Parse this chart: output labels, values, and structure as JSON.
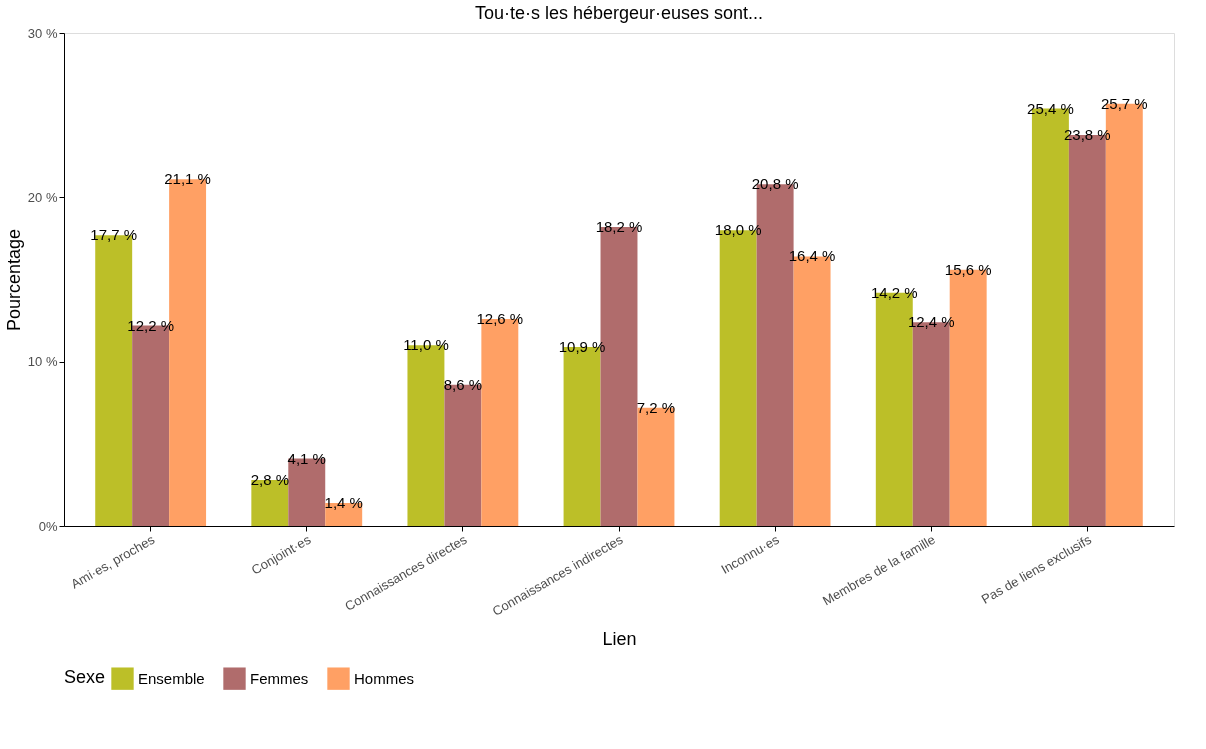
{
  "chart_data": {
    "type": "bar",
    "title": "Tou·te·s les hébergeur·euses sont...",
    "xlabel": "Lien",
    "ylabel": "Pourcentage",
    "legend_title": "Sexe",
    "legend": "bottom",
    "grid": false,
    "categories": [
      "Ami·es, proches",
      "Conjoint·es",
      "Connaissances directes",
      "Connaissances indirectes",
      "Inconnu·es",
      "Membres de la famille",
      "Pas de liens exclusifs"
    ],
    "ylim": [
      0,
      30
    ],
    "yticks": [
      {
        "value": 0,
        "label": "0%"
      },
      {
        "value": 10,
        "label": "10 %"
      },
      {
        "value": 20,
        "label": "20 %"
      },
      {
        "value": 30,
        "label": "30 %"
      }
    ],
    "series": [
      {
        "name": "Ensemble",
        "color": "#bcbf28",
        "values": [
          17.7,
          2.8,
          11.0,
          10.9,
          18.0,
          14.2,
          25.4
        ],
        "value_labels": [
          "17,7 %",
          "2,8 %",
          "11,0 %",
          "10,9 %",
          "18,0 %",
          "14,2 %",
          "25,4 %"
        ]
      },
      {
        "name": "Femmes",
        "color": "#b06c6c",
        "values": [
          12.2,
          4.1,
          8.6,
          18.2,
          20.8,
          12.4,
          23.8
        ],
        "value_labels": [
          "12,2 %",
          "4,1 %",
          "8,6 %",
          "18,2 %",
          "20,8 %",
          "12,4 %",
          "23,8 %"
        ]
      },
      {
        "name": "Hommes",
        "color": "#ffa064",
        "values": [
          21.1,
          1.4,
          12.6,
          7.2,
          16.4,
          15.6,
          25.7
        ],
        "value_labels": [
          "21,1 %",
          "1,4 %",
          "12,6 %",
          "7,2 %",
          "16,4 %",
          "15,6 %",
          "25,7 %"
        ]
      }
    ]
  }
}
